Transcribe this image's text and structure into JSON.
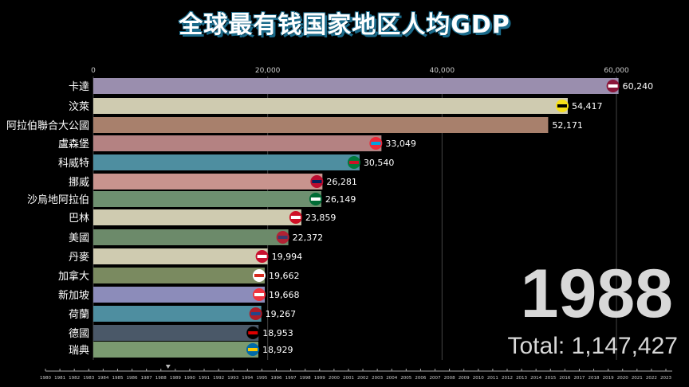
{
  "title": "全球最有钱国家地区人均GDP",
  "year": "1988",
  "total": "Total: 1,147,427",
  "chart_data": {
    "type": "bar",
    "orientation": "horizontal",
    "xlim": [
      0,
      60000
    ],
    "xticks": [
      0,
      20000,
      40000,
      60000
    ],
    "xtick_labels": [
      "0",
      "20,000",
      "40,000",
      "60,000"
    ],
    "grid": true,
    "categories": [
      "卡達",
      "汶萊",
      "阿拉伯聯合大公國",
      "盧森堡",
      "科威特",
      "挪威",
      "沙烏地阿拉伯",
      "巴林",
      "美國",
      "丹麥",
      "加拿大",
      "新加坡",
      "荷蘭",
      "德國",
      "瑞典"
    ],
    "values": [
      60240,
      54417,
      52171,
      33049,
      30540,
      26281,
      26149,
      23859,
      22372,
      19994,
      19662,
      19668,
      19267,
      18953,
      18929
    ],
    "value_labels": [
      "60,240",
      "54,417",
      "52,171",
      "33,049",
      "30,540",
      "26,281",
      "26,149",
      "23,859",
      "22,372",
      "19,994",
      "19,662",
      "19,668",
      "19,267",
      "18,953",
      "18,929"
    ],
    "colors": [
      "#9a8eae",
      "#cfcbb0",
      "#a8806c",
      "#b48282",
      "#4e8ea0",
      "#c8948e",
      "#6e9070",
      "#cfcbb0",
      "#6c8a6a",
      "#cfcbb0",
      "#7a8a60",
      "#8c8cba",
      "#4e8ea0",
      "#4a5868",
      "#7a9a70"
    ],
    "flags": [
      "qatar",
      "brunei",
      "",
      "luxembourg",
      "kuwait",
      "norway",
      "saudi-arabia",
      "bahrain",
      "usa",
      "denmark",
      "canada",
      "singapore",
      "netherlands",
      "germany",
      "sweden"
    ]
  },
  "timeline": {
    "start": 1980,
    "end": 2023,
    "current": 1988.5
  }
}
